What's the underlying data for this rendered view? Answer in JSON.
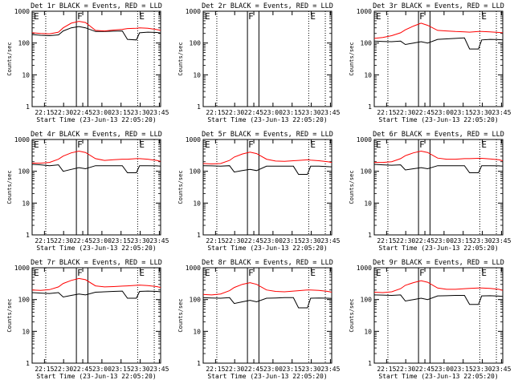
{
  "figure": {
    "xlabel": "Start Time (23-Jun-13 22:05:20)",
    "ylabel": "Counts/sec",
    "x_ticks": [
      "22:15",
      "22:30",
      "22:45",
      "23:00",
      "23:15",
      "23:30",
      "23:45"
    ],
    "y_ticks": [
      "1",
      "10",
      "100",
      "1000"
    ],
    "y_scale": "log",
    "colors": {
      "events": "#000000",
      "lld": "#ff0000"
    }
  },
  "chart_data": [
    {
      "type": "line",
      "title": "Det 1r BLACK = Events, RED = LLD",
      "x": [
        "22:05:20",
        "22:12:00",
        "22:19:00",
        "22:26:00",
        "22:29:40",
        "22:36:00",
        "22:42:00",
        "22:47:10",
        "22:55:00",
        "23:02:00",
        "23:09:00",
        "23:16:00",
        "23:20:00",
        "23:27:00",
        "23:29:30",
        "23:36:00",
        "23:43:00",
        "23:46:00"
      ],
      "series": [
        {
          "name": "Events",
          "values": [
            185,
            175,
            170,
            180,
            240,
            300,
            330,
            300,
            230,
            230,
            235,
            240,
            130,
            125,
            210,
            220,
            215,
            205
          ]
        },
        {
          "name": "LLD",
          "values": [
            210,
            200,
            195,
            220,
            300,
            420,
            480,
            440,
            250,
            240,
            255,
            270,
            285,
            290,
            300,
            290,
            265,
            250
          ]
        }
      ],
      "xlim": [
        "22:05:20",
        "23:46:00"
      ],
      "ylim": [
        1,
        1000
      ],
      "markers": {
        "dotted": [
          "22:16:00",
          "23:28:00",
          "23:41:00"
        ],
        "solid": [
          "22:40:00",
          "22:49:00"
        ],
        "labels": [
          "E",
          "F",
          "E"
        ]
      }
    },
    {
      "type": "line",
      "title": "Det 2r BLACK = Events, RED = LLD",
      "x": [],
      "series": [],
      "xlim": [
        "22:05:20",
        "23:46:00"
      ],
      "ylim": [
        1,
        1000
      ],
      "markers": {
        "dotted": [
          "22:16:00",
          "23:28:00",
          "23:41:00"
        ],
        "solid": [
          "22:40:00",
          "22:49:00"
        ],
        "labels": [
          "E",
          "F",
          "E"
        ]
      }
    },
    {
      "type": "line",
      "title": "Det 3r BLACK = Events, RED = LLD",
      "x": [
        "22:05:20",
        "22:12:00",
        "22:19:00",
        "22:26:00",
        "22:29:40",
        "22:36:00",
        "22:42:00",
        "22:47:10",
        "22:55:00",
        "23:02:00",
        "23:09:00",
        "23:16:00",
        "23:20:00",
        "23:27:00",
        "23:29:30",
        "23:36:00",
        "23:43:00",
        "23:46:00"
      ],
      "series": [
        {
          "name": "Events",
          "values": [
            115,
            112,
            110,
            115,
            90,
            100,
            110,
            100,
            130,
            135,
            140,
            145,
            65,
            65,
            125,
            130,
            128,
            125
          ]
        },
        {
          "name": "LLD",
          "values": [
            140,
            150,
            170,
            210,
            260,
            340,
            420,
            360,
            250,
            240,
            230,
            225,
            220,
            230,
            230,
            225,
            215,
            210
          ]
        }
      ],
      "xlim": [
        "22:05:20",
        "23:46:00"
      ],
      "ylim": [
        1,
        1000
      ],
      "markers": {
        "dotted": [
          "22:16:00",
          "23:28:00",
          "23:41:00"
        ],
        "solid": [
          "22:40:00",
          "22:49:00"
        ],
        "labels": [
          "E",
          "F",
          "E"
        ]
      }
    },
    {
      "type": "line",
      "title": "Det 4r BLACK = Events, RED = LLD",
      "x": [
        "22:05:20",
        "22:12:00",
        "22:19:00",
        "22:26:00",
        "22:29:40",
        "22:36:00",
        "22:42:00",
        "22:47:10",
        "22:55:00",
        "23:02:00",
        "23:09:00",
        "23:16:00",
        "23:20:00",
        "23:27:00",
        "23:29:30",
        "23:36:00",
        "23:43:00",
        "23:46:00"
      ],
      "series": [
        {
          "name": "Events",
          "values": [
            165,
            160,
            150,
            160,
            100,
            115,
            130,
            120,
            150,
            150,
            150,
            150,
            90,
            90,
            150,
            150,
            148,
            145
          ]
        },
        {
          "name": "LLD",
          "values": [
            180,
            180,
            190,
            240,
            300,
            380,
            430,
            390,
            250,
            220,
            230,
            240,
            240,
            250,
            250,
            240,
            220,
            205
          ]
        }
      ],
      "xlim": [
        "22:05:20",
        "23:46:00"
      ],
      "ylim": [
        1,
        1000
      ],
      "markers": {
        "dotted": [
          "22:16:00",
          "23:28:00",
          "23:41:00"
        ],
        "solid": [
          "22:40:00",
          "22:49:00"
        ],
        "labels": [
          "E",
          "F",
          "E"
        ]
      }
    },
    {
      "type": "line",
      "title": "Det 5r BLACK = Events, RED = LLD",
      "x": [
        "22:05:20",
        "22:12:00",
        "22:19:00",
        "22:26:00",
        "22:29:40",
        "22:36:00",
        "22:42:00",
        "22:47:10",
        "22:55:00",
        "23:02:00",
        "23:09:00",
        "23:16:00",
        "23:20:00",
        "23:27:00",
        "23:29:30",
        "23:36:00",
        "23:43:00",
        "23:46:00"
      ],
      "series": [
        {
          "name": "Events",
          "values": [
            150,
            148,
            145,
            150,
            95,
            105,
            115,
            105,
            145,
            145,
            145,
            145,
            80,
            80,
            145,
            145,
            140,
            138
          ]
        },
        {
          "name": "LLD",
          "values": [
            175,
            170,
            175,
            220,
            280,
            350,
            400,
            360,
            240,
            210,
            205,
            215,
            220,
            230,
            225,
            215,
            200,
            190
          ]
        }
      ],
      "xlim": [
        "22:05:20",
        "23:46:00"
      ],
      "ylim": [
        1,
        1000
      ],
      "markers": {
        "dotted": [
          "22:16:00",
          "23:28:00",
          "23:41:00"
        ],
        "solid": [
          "22:40:00",
          "22:49:00"
        ],
        "labels": [
          "E",
          "F",
          "E"
        ]
      }
    },
    {
      "type": "line",
      "title": "Det 6r BLACK = Events, RED = LLD",
      "x": [
        "22:05:20",
        "22:12:00",
        "22:19:00",
        "22:26:00",
        "22:29:40",
        "22:36:00",
        "22:42:00",
        "22:47:10",
        "22:55:00",
        "23:02:00",
        "23:09:00",
        "23:16:00",
        "23:20:00",
        "23:27:00",
        "23:29:30",
        "23:36:00",
        "23:43:00",
        "23:46:00"
      ],
      "series": [
        {
          "name": "Events",
          "values": [
            165,
            160,
            155,
            160,
            110,
            120,
            130,
            120,
            150,
            150,
            150,
            150,
            90,
            90,
            150,
            150,
            148,
            145
          ]
        },
        {
          "name": "LLD",
          "values": [
            190,
            190,
            200,
            250,
            310,
            380,
            430,
            390,
            260,
            240,
            240,
            250,
            250,
            255,
            255,
            245,
            230,
            215
          ]
        }
      ],
      "xlim": [
        "22:05:20",
        "23:46:00"
      ],
      "ylim": [
        1,
        1000
      ],
      "markers": {
        "dotted": [
          "22:16:00",
          "23:28:00",
          "23:41:00"
        ],
        "solid": [
          "22:40:00",
          "22:49:00"
        ],
        "labels": [
          "E",
          "F",
          "E"
        ]
      }
    },
    {
      "type": "line",
      "title": "Det 7r BLACK = Events, RED = LLD",
      "x": [
        "22:05:20",
        "22:12:00",
        "22:19:00",
        "22:26:00",
        "22:29:40",
        "22:36:00",
        "22:42:00",
        "22:47:10",
        "22:55:00",
        "23:02:00",
        "23:09:00",
        "23:16:00",
        "23:20:00",
        "23:27:00",
        "23:29:30",
        "23:36:00",
        "23:43:00",
        "23:46:00"
      ],
      "series": [
        {
          "name": "Events",
          "values": [
            165,
            160,
            155,
            165,
            120,
            135,
            150,
            140,
            170,
            175,
            180,
            185,
            110,
            110,
            180,
            185,
            180,
            175
          ]
        },
        {
          "name": "LLD",
          "values": [
            200,
            195,
            205,
            250,
            320,
            400,
            460,
            420,
            270,
            250,
            255,
            265,
            270,
            280,
            285,
            275,
            255,
            240
          ]
        }
      ],
      "xlim": [
        "22:05:20",
        "23:46:00"
      ],
      "ylim": [
        1,
        1000
      ],
      "markers": {
        "dotted": [
          "22:16:00",
          "23:28:00",
          "23:41:00"
        ],
        "solid": [
          "22:40:00",
          "22:49:00"
        ],
        "labels": [
          "E",
          "F",
          "E"
        ]
      }
    },
    {
      "type": "line",
      "title": "Det 8r BLACK = Events, RED = LLD",
      "x": [
        "22:05:20",
        "22:12:00",
        "22:19:00",
        "22:26:00",
        "22:29:40",
        "22:36:00",
        "22:42:00",
        "22:47:10",
        "22:55:00",
        "23:02:00",
        "23:09:00",
        "23:16:00",
        "23:20:00",
        "23:27:00",
        "23:29:30",
        "23:36:00",
        "23:43:00",
        "23:46:00"
      ],
      "series": [
        {
          "name": "Events",
          "values": [
            115,
            112,
            110,
            115,
            75,
            85,
            95,
            85,
            110,
            112,
            115,
            115,
            55,
            55,
            110,
            112,
            110,
            108
          ]
        },
        {
          "name": "LLD",
          "values": [
            145,
            140,
            150,
            190,
            240,
            300,
            340,
            300,
            200,
            180,
            175,
            185,
            190,
            200,
            200,
            195,
            180,
            170
          ]
        }
      ],
      "xlim": [
        "22:05:20",
        "23:46:00"
      ],
      "ylim": [
        1,
        1000
      ],
      "markers": {
        "dotted": [
          "22:16:00",
          "23:28:00",
          "23:41:00"
        ],
        "solid": [
          "22:40:00",
          "22:49:00"
        ],
        "labels": [
          "E",
          "F",
          "E"
        ]
      }
    },
    {
      "type": "line",
      "title": "Det 9r BLACK = Events, RED = LLD",
      "x": [
        "22:05:20",
        "22:12:00",
        "22:19:00",
        "22:26:00",
        "22:29:40",
        "22:36:00",
        "22:42:00",
        "22:47:10",
        "22:55:00",
        "23:02:00",
        "23:09:00",
        "23:16:00",
        "23:20:00",
        "23:27:00",
        "23:29:30",
        "23:36:00",
        "23:43:00",
        "23:46:00"
      ],
      "series": [
        {
          "name": "Events",
          "values": [
            140,
            138,
            135,
            140,
            90,
            100,
            110,
            100,
            130,
            132,
            135,
            135,
            70,
            70,
            130,
            132,
            128,
            125
          ]
        },
        {
          "name": "LLD",
          "values": [
            170,
            165,
            175,
            220,
            280,
            340,
            390,
            350,
            230,
            210,
            210,
            220,
            225,
            230,
            230,
            225,
            210,
            195
          ]
        }
      ],
      "xlim": [
        "22:05:20",
        "23:46:00"
      ],
      "ylim": [
        1,
        1000
      ],
      "markers": {
        "dotted": [
          "22:16:00",
          "23:28:00",
          "23:41:00"
        ],
        "solid": [
          "22:40:00",
          "22:49:00"
        ],
        "labels": [
          "E",
          "F",
          "E"
        ]
      }
    }
  ]
}
